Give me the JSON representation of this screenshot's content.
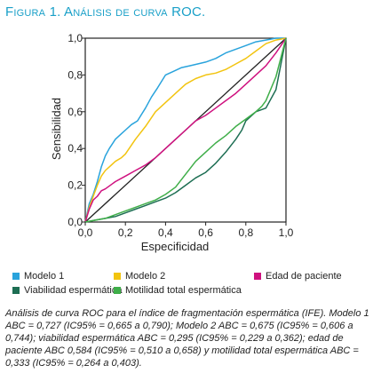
{
  "figure": {
    "label": "Figura 1. Análisis de curva ROC.",
    "caption": "Análisis de curva ROC para el índice de fragmentación espermática (IFE). Modelo 1 ABC = 0,727 (IC95% = 0,665 a 0,790); Modelo 2 ABC = 0,675 (IC95% = 0,606 a 0,744); viabilidad espermática ABC = 0,295 (IC95% = 0,229 a 0,362); edad de paciente ABC 0,584 (IC95% = 0,510 a 0,658) y motilidad total espermática ABC = 0,333 (IC95% = 0,264 a 0,403)."
  },
  "chart_data": {
    "type": "line",
    "title": "",
    "xlabel": "Especificidad",
    "ylabel": "Sensibilidad",
    "xlim": [
      0,
      1
    ],
    "ylim": [
      0,
      1
    ],
    "x_ticks": [
      "0,0",
      "0,2",
      "0,4",
      "0,6",
      "0,8",
      "1,0"
    ],
    "y_ticks": [
      "0,0",
      "0,2",
      "0,4",
      "0,6",
      "0,8",
      "1,0"
    ],
    "grid": false,
    "legend_position": "bottom",
    "reference_line": {
      "from": [
        0,
        0
      ],
      "to": [
        1,
        1
      ],
      "color": "#222222"
    },
    "series": [
      {
        "name": "Modelo 1",
        "color": "#29a3dc",
        "x": [
          0,
          0.02,
          0.04,
          0.06,
          0.08,
          0.1,
          0.12,
          0.15,
          0.18,
          0.2,
          0.23,
          0.26,
          0.3,
          0.33,
          0.36,
          0.4,
          0.44,
          0.48,
          0.52,
          0.56,
          0.6,
          0.65,
          0.7,
          0.75,
          0.8,
          0.85,
          0.9,
          0.95,
          1.0
        ],
        "y": [
          0,
          0.1,
          0.15,
          0.22,
          0.3,
          0.36,
          0.4,
          0.45,
          0.48,
          0.5,
          0.53,
          0.55,
          0.62,
          0.68,
          0.73,
          0.8,
          0.82,
          0.84,
          0.85,
          0.86,
          0.87,
          0.89,
          0.92,
          0.94,
          0.96,
          0.98,
          0.99,
          1.0,
          1.0
        ]
      },
      {
        "name": "Modelo 2",
        "color": "#f2c410",
        "x": [
          0,
          0.02,
          0.04,
          0.06,
          0.08,
          0.1,
          0.12,
          0.15,
          0.18,
          0.2,
          0.25,
          0.3,
          0.35,
          0.4,
          0.45,
          0.5,
          0.55,
          0.6,
          0.65,
          0.7,
          0.75,
          0.8,
          0.85,
          0.9,
          0.95,
          1.0
        ],
        "y": [
          0,
          0.08,
          0.14,
          0.2,
          0.25,
          0.28,
          0.3,
          0.33,
          0.35,
          0.37,
          0.45,
          0.52,
          0.6,
          0.65,
          0.7,
          0.75,
          0.78,
          0.8,
          0.81,
          0.83,
          0.86,
          0.89,
          0.93,
          0.97,
          0.99,
          1.0
        ]
      },
      {
        "name": "Edad de paciente",
        "color": "#cf117f",
        "x": [
          0,
          0.02,
          0.04,
          0.06,
          0.08,
          0.1,
          0.15,
          0.2,
          0.25,
          0.3,
          0.35,
          0.4,
          0.45,
          0.5,
          0.55,
          0.6,
          0.65,
          0.7,
          0.75,
          0.8,
          0.85,
          0.9,
          0.95,
          1.0
        ],
        "y": [
          0,
          0.07,
          0.12,
          0.14,
          0.17,
          0.18,
          0.22,
          0.25,
          0.28,
          0.31,
          0.35,
          0.4,
          0.45,
          0.5,
          0.55,
          0.58,
          0.62,
          0.66,
          0.7,
          0.75,
          0.8,
          0.85,
          0.92,
          1.0
        ]
      },
      {
        "name": "Viabilidad espermática",
        "color": "#1d6e53",
        "x": [
          0,
          0.05,
          0.1,
          0.15,
          0.2,
          0.25,
          0.3,
          0.35,
          0.4,
          0.45,
          0.5,
          0.55,
          0.6,
          0.65,
          0.7,
          0.75,
          0.78,
          0.8,
          0.85,
          0.9,
          0.95,
          1.0
        ],
        "y": [
          0,
          0.01,
          0.02,
          0.03,
          0.05,
          0.07,
          0.09,
          0.11,
          0.13,
          0.16,
          0.2,
          0.24,
          0.27,
          0.32,
          0.38,
          0.45,
          0.5,
          0.55,
          0.6,
          0.62,
          0.72,
          1.0
        ]
      },
      {
        "name": "Motilidad total espermática",
        "color": "#3fae49",
        "x": [
          0,
          0.05,
          0.1,
          0.15,
          0.2,
          0.25,
          0.3,
          0.35,
          0.4,
          0.45,
          0.5,
          0.55,
          0.6,
          0.65,
          0.7,
          0.75,
          0.8,
          0.85,
          0.88,
          0.9,
          0.95,
          1.0
        ],
        "y": [
          0,
          0.01,
          0.02,
          0.04,
          0.06,
          0.08,
          0.1,
          0.12,
          0.15,
          0.19,
          0.26,
          0.33,
          0.38,
          0.43,
          0.47,
          0.52,
          0.56,
          0.6,
          0.63,
          0.66,
          0.79,
          1.0
        ]
      }
    ]
  }
}
